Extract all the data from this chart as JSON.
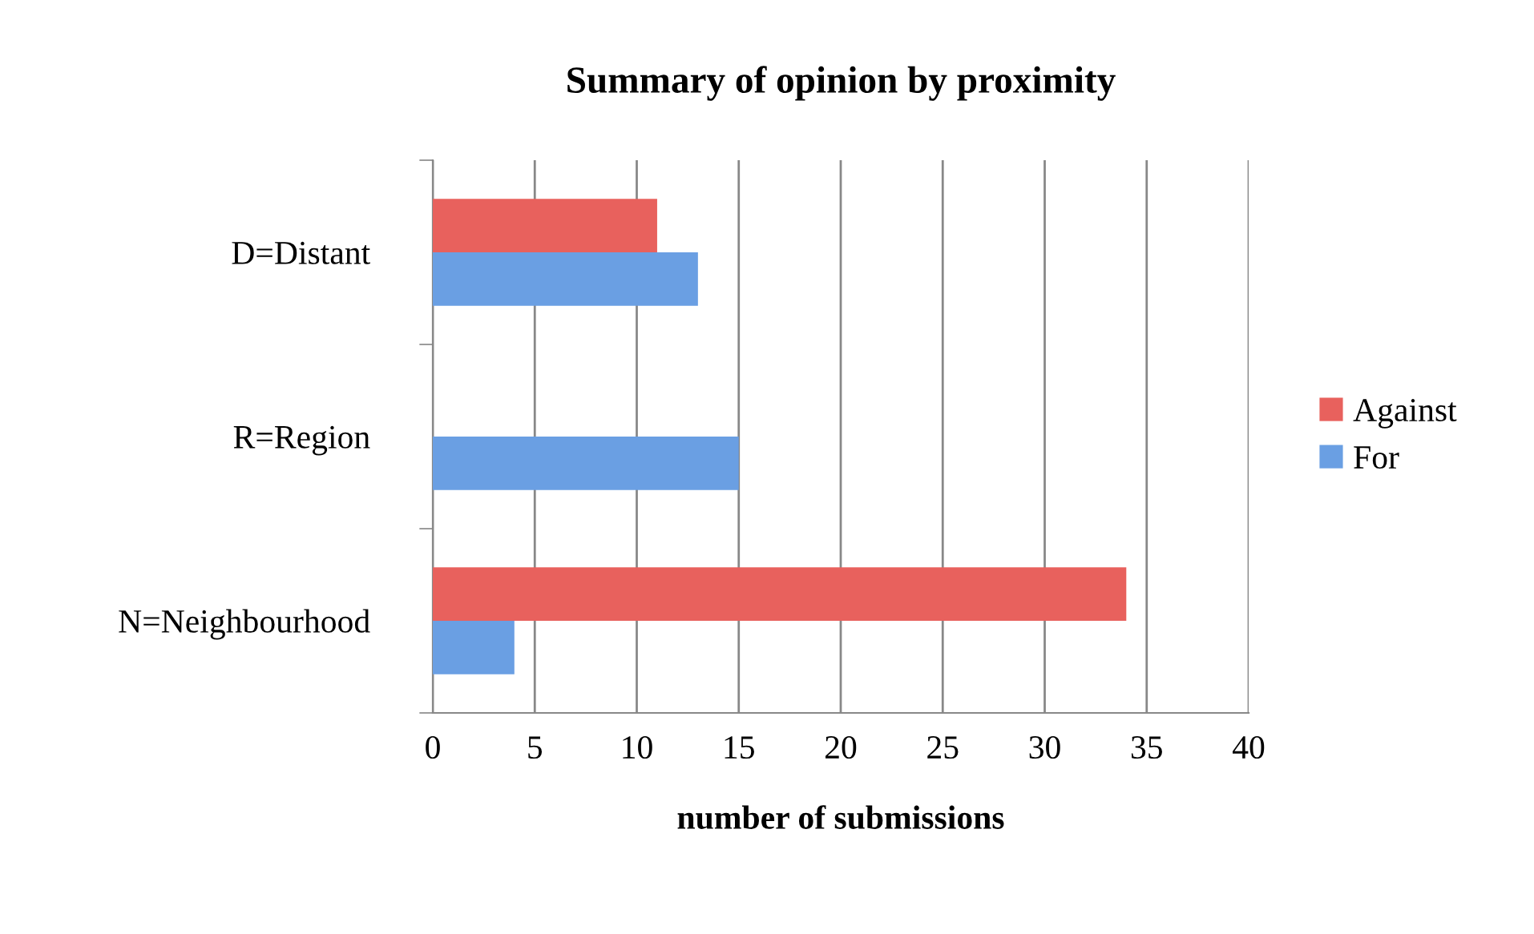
{
  "chart_data": {
    "type": "bar",
    "orientation": "horizontal",
    "title": "Summary of opinion by proximity",
    "xlabel": "number of submissions",
    "categories": [
      "D=Distant",
      "R=Region",
      "N=Neighbourhood"
    ],
    "series": [
      {
        "name": "Against",
        "color": "#e8615d",
        "values": [
          11,
          null,
          34
        ]
      },
      {
        "name": "For",
        "color": "#6a9fe3",
        "values": [
          13,
          15,
          4
        ]
      }
    ],
    "xlim": [
      0,
      40
    ],
    "xticks": [
      0,
      5,
      10,
      15,
      20,
      25,
      30,
      35,
      40
    ],
    "grid": "x",
    "legend": "right"
  }
}
